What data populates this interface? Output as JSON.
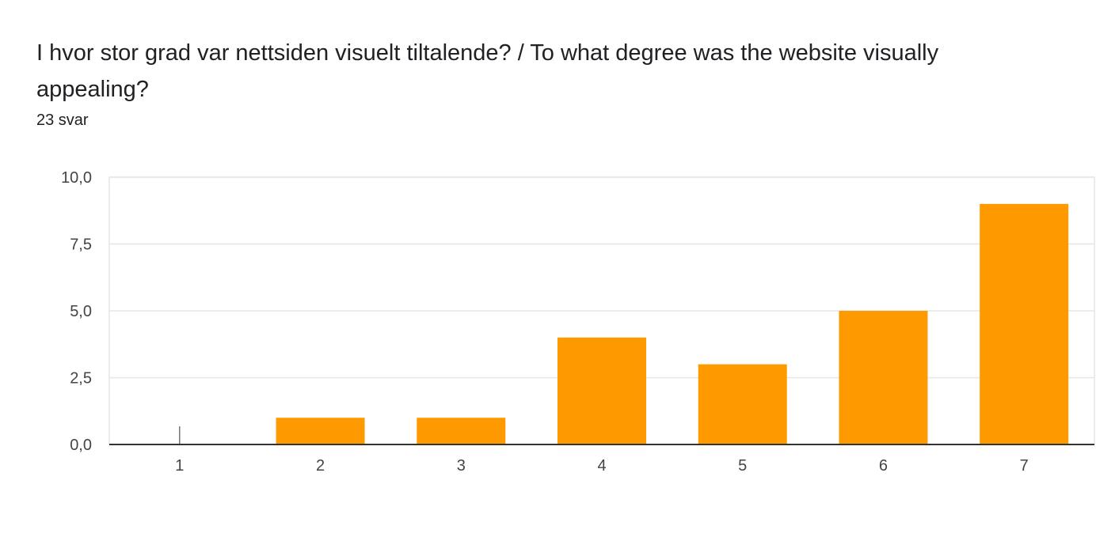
{
  "question": {
    "title": "I hvor stor grad var nettsiden visuelt tiltalende? / To what degree was the website visually appealing?",
    "response_count": "23 svar"
  },
  "colors": {
    "bar": "#ff9900",
    "grid": "#e6e6e6",
    "baseline": "#333333",
    "tick_text": "#444444"
  },
  "chart_data": {
    "type": "bar",
    "categories": [
      "1",
      "2",
      "3",
      "4",
      "5",
      "6",
      "7"
    ],
    "values": [
      0,
      1,
      1,
      4,
      3,
      5,
      9
    ],
    "y_ticks": [
      "0,0",
      "2,5",
      "5,0",
      "7,5",
      "10,0"
    ],
    "y_tick_values": [
      0,
      2.5,
      5,
      7.5,
      10
    ],
    "ylim": [
      0,
      10
    ],
    "grid": true,
    "legend": "none"
  }
}
